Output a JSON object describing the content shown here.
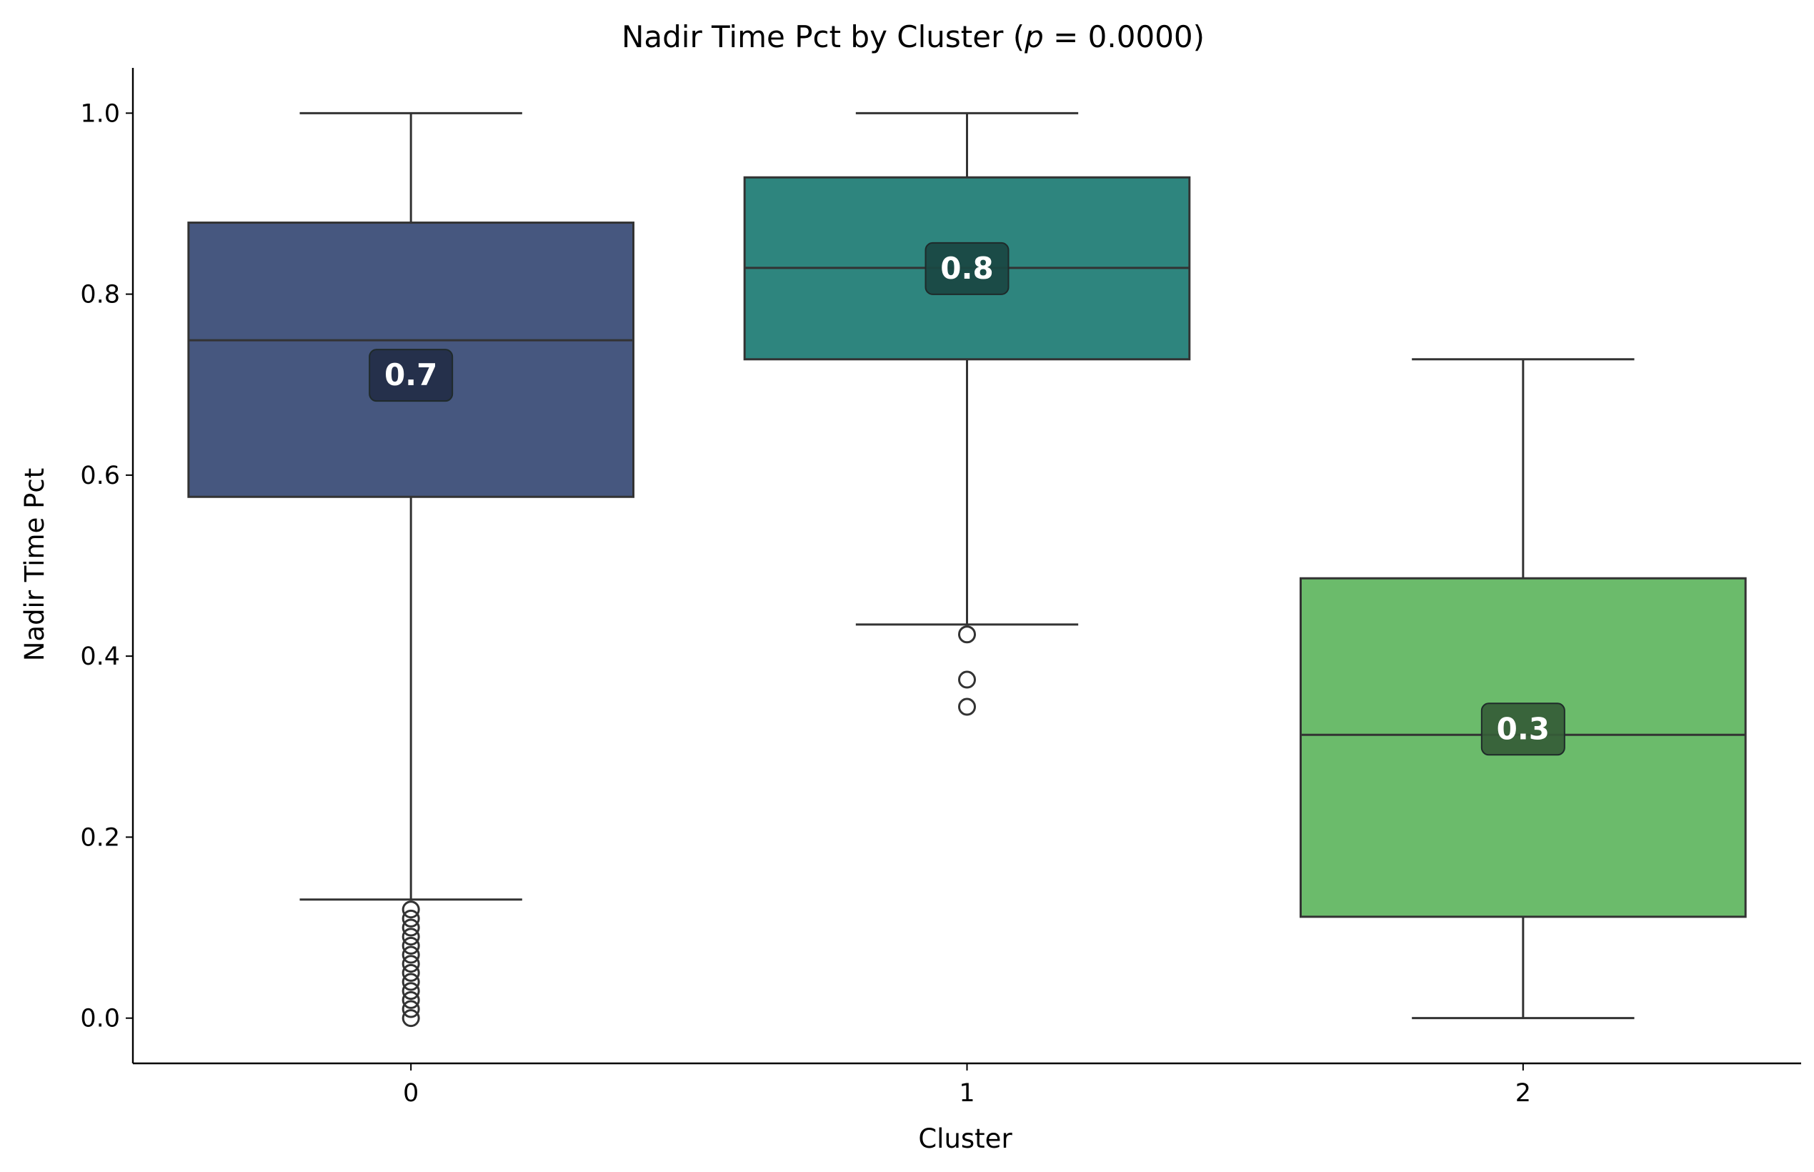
{
  "chart_data": {
    "type": "box",
    "title": "Nadir Time Pct by Cluster (p = 0.0000)",
    "title_parts": {
      "prefix": "Nadir Time Pct by Cluster (",
      "italic_p": "p",
      "suffix": " = 0.0000)"
    },
    "xlabel": "Cluster",
    "ylabel": "Nadir Time Pct",
    "ylim": [
      -0.05,
      1.05
    ],
    "yticks": [
      0.0,
      0.2,
      0.4,
      0.6,
      0.8,
      1.0
    ],
    "ytick_labels": [
      "0.0",
      "0.2",
      "0.4",
      "0.6",
      "0.8",
      "1.0"
    ],
    "categories": [
      "0",
      "1",
      "2"
    ],
    "grid": false,
    "boxes": [
      {
        "category": "0",
        "whisker_low": 0.131,
        "q1": 0.576,
        "median": 0.749,
        "q3": 0.879,
        "whisker_high": 1.0,
        "outliers": [
          0.12,
          0.11,
          0.1,
          0.09,
          0.08,
          0.07,
          0.06,
          0.05,
          0.04,
          0.03,
          0.02,
          0.01,
          0.0
        ],
        "median_label": "0.7",
        "color": "#46577f"
      },
      {
        "category": "1",
        "whisker_low": 0.435,
        "q1": 0.728,
        "median": 0.829,
        "q3": 0.929,
        "whisker_high": 1.0,
        "outliers": [
          0.424,
          0.374,
          0.344
        ],
        "median_label": "0.8",
        "color": "#2e857e"
      },
      {
        "category": "2",
        "whisker_low": 0.0,
        "q1": 0.112,
        "median": 0.313,
        "q3": 0.486,
        "whisker_high": 0.728,
        "outliers": [],
        "median_label": "0.3",
        "color": "#6bbb6b"
      }
    ],
    "label_box_colors": [
      "#232c46",
      "#1a4742",
      "#355c37"
    ],
    "line_color": "#333333"
  }
}
